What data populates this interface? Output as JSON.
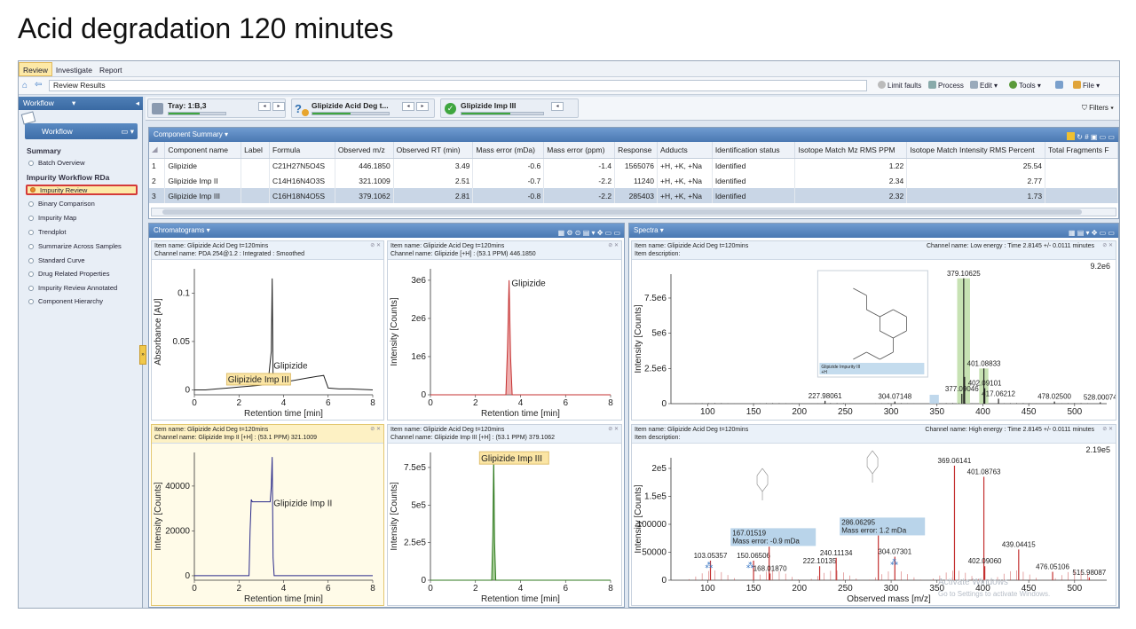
{
  "slide_title": "Acid degradation 120 minutes",
  "ribbon": {
    "tabs": [
      "Review",
      "Investigate",
      "Report"
    ]
  },
  "nav": {
    "address": "Review Results",
    "limit_faults": "Limit faults",
    "process": "Process",
    "edit": "Edit",
    "tools": "Tools",
    "file": "File",
    "filters": "Filters"
  },
  "sidebar": {
    "header": "Workflow",
    "workflow_button": "Workflow",
    "summary_label": "Summary",
    "batch_overview": "Batch Overview",
    "workflow_label": "Impurity Workflow RDa",
    "items": [
      "Impurity Review",
      "Binary Comparison",
      "Impurity Map",
      "Trendplot",
      "Summarize Across Samples",
      "Standard Curve",
      "Drug Related Properties",
      "Impurity Review Annotated",
      "Component Hierarchy"
    ]
  },
  "trays": [
    {
      "label": "Tray: 1:B,3",
      "progress": 0.55
    },
    {
      "label": "Glipizide Acid Deg t...",
      "progress": 0.5
    },
    {
      "label": "Glipizide Imp III",
      "progress": 0.6
    }
  ],
  "component_summary": {
    "title": "Component Summary",
    "columns": [
      "Component name",
      "Label",
      "Formula",
      "Observed m/z",
      "Observed RT (min)",
      "Mass error (mDa)",
      "Mass error (ppm)",
      "Response",
      "Adducts",
      "Identification status",
      "Isotope Match Mz RMS PPM",
      "Isotope Match Intensity RMS Percent",
      "Total Fragments F"
    ],
    "rows": [
      {
        "n": "1",
        "name": "Glipizide",
        "label": "",
        "formula": "C21H27N5O4S",
        "mz": "446.1850",
        "rt": "3.49",
        "me_mda": "-0.6",
        "me_ppm": "-1.4",
        "response": "1565076",
        "adducts": "+H, +K, +Na",
        "status": "Identified",
        "iso_ppm": "1.22",
        "iso_pct": "25.54"
      },
      {
        "n": "2",
        "name": "Glipizide Imp II",
        "label": "",
        "formula": "C14H16N4O3S",
        "mz": "321.1009",
        "rt": "2.51",
        "me_mda": "-0.7",
        "me_ppm": "-2.2",
        "response": "11240",
        "adducts": "+H, +K, +Na",
        "status": "Identified",
        "iso_ppm": "2.34",
        "iso_pct": "2.77"
      },
      {
        "n": "3",
        "name": "Glipizide Imp III",
        "label": "",
        "formula": "C16H18N4O5S",
        "mz": "379.1062",
        "rt": "2.81",
        "me_mda": "-0.8",
        "me_ppm": "-2.2",
        "response": "285403",
        "adducts": "+H, +K, +Na",
        "status": "Identified",
        "iso_ppm": "2.32",
        "iso_pct": "1.73"
      }
    ]
  },
  "chromatograms": {
    "title": "Chromatograms",
    "xlabel": "Retention time [min]",
    "plots": [
      {
        "item": "Item name: Glipizide Acid Deg t=120mins",
        "channel": "Channel name: PDA 254@1.2 : Integrated : Smoothed",
        "ylabel": "Absorbance [AU]",
        "label1": "Glipizide",
        "label2": "Glipizide Imp III"
      },
      {
        "item": "Item name: Glipizide Acid Deg t=120mins",
        "channel": "Channel name: Glipizide [+H] : (53.1 PPM) 446.1850",
        "ylabel": "Intensity [Counts]",
        "label1": "Glipizide"
      },
      {
        "item": "Item name: Glipizide Acid Deg t=120mins",
        "channel": "Channel name: Glipizide Imp II [+H] : (53.1 PPM) 321.1009",
        "ylabel": "Intensity [Counts]",
        "label1": "Glipizide Imp II"
      },
      {
        "item": "Item name: Glipizide Acid Deg t=120mins",
        "channel": "Channel name: Glipizide Imp III [+H] : (53.1 PPM) 379.1062",
        "ylabel": "Intensity [Counts]",
        "label1": "Glipizide Imp III"
      }
    ]
  },
  "spectra": {
    "title": "Spectra",
    "low": {
      "item": "Item name: Glipizide Acid Deg t=120mins",
      "desc": "Item description:",
      "channel": "Channel name: Low energy : Time 2.8145 +/- 0.0111 minutes",
      "max": "9.2e6",
      "ylabel": "Intensity [Counts]",
      "struct_label": "Glipizide Impurity III",
      "struct_sub": "+H"
    },
    "high": {
      "item": "Item name: Glipizide Acid Deg t=120mins",
      "desc": "Item description:",
      "channel": "Channel name: High energy : Time 2.8145 +/- 0.0111 minutes",
      "max": "2.19e5",
      "ylabel": "Intensity [Counts]",
      "xlabel": "Observed mass [m/z]",
      "ann1a": "167.01519",
      "ann1b": "Mass error: -0.9 mDa",
      "ann2a": "286.06295",
      "ann2b": "Mass error: 1.2 mDa"
    }
  },
  "watermark": {
    "line1": "Activate Windows",
    "line2": "Go to Settings to activate Windows."
  },
  "chart_data": [
    {
      "type": "line",
      "title": "",
      "xlabel": "Retention time [min]",
      "ylabel": "Absorbance [AU]",
      "xlim": [
        0,
        8
      ],
      "ylim": [
        -0.005,
        0.125
      ],
      "xticks": [
        0,
        2,
        4,
        6,
        8
      ],
      "yticks": [
        0,
        0.05,
        0.1
      ],
      "ytick_labels": [
        "0",
        "0.05",
        "0.1"
      ],
      "series": [
        {
          "x": [
            0,
            0.5,
            1,
            1.5,
            2,
            2.5,
            3,
            3.3,
            3.45,
            3.49,
            3.53,
            3.7,
            4,
            4.5,
            5,
            5.5,
            5.8,
            6,
            6.5,
            7,
            8
          ],
          "y": [
            0,
            0,
            0.001,
            0.002,
            0.003,
            0.004,
            0.005,
            0.006,
            0.04,
            0.115,
            0.01,
            0.007,
            0.008,
            0.01,
            0.012,
            0.014,
            0.015,
            0.002,
            0.001,
            0.001,
            0
          ]
        }
      ]
    },
    {
      "type": "line",
      "title": "",
      "xlabel": "Retention time [min]",
      "ylabel": "Intensity [Counts]",
      "xlim": [
        0,
        8
      ],
      "ylim": [
        0,
        3300000.0
      ],
      "xticks": [
        0,
        2,
        4,
        6,
        8
      ],
      "yticks": [
        0,
        1000000.0,
        2000000.0,
        3000000.0
      ],
      "ytick_labels": [
        "0",
        "1e6",
        "2e6",
        "3e6"
      ],
      "series": [
        {
          "x": [
            0,
            3.35,
            3.42,
            3.49,
            3.56,
            3.63,
            8
          ],
          "y": [
            0,
            0,
            1200000.0,
            3000000.0,
            1000000.0,
            0,
            0
          ]
        }
      ]
    },
    {
      "type": "line",
      "title": "",
      "xlabel": "Retention time [min]",
      "ylabel": "Intensity [Counts]",
      "xlim": [
        0,
        8
      ],
      "ylim": [
        -2000,
        55000
      ],
      "xticks": [
        0,
        2,
        4,
        6,
        8
      ],
      "yticks": [
        0,
        20000,
        40000
      ],
      "ytick_labels": [
        "0",
        "20000",
        "40000"
      ],
      "series": [
        {
          "x": [
            0,
            2.45,
            2.5,
            2.55,
            2.6,
            3.4,
            3.45,
            3.49,
            3.53,
            3.58,
            8
          ],
          "y": [
            0,
            0,
            20000,
            34000,
            33000,
            33000,
            40000,
            53000,
            8000,
            0,
            0
          ]
        }
      ]
    },
    {
      "type": "line",
      "title": "",
      "xlabel": "Retention time [min]",
      "ylabel": "Intensity [Counts]",
      "xlim": [
        0,
        8
      ],
      "ylim": [
        0,
        850000.0
      ],
      "xticks": [
        0,
        2,
        4,
        6,
        8
      ],
      "yticks": [
        0,
        250000.0,
        500000.0,
        750000.0
      ],
      "ytick_labels": [
        "0",
        "2.5e5",
        "5e5",
        "7.5e5"
      ],
      "series": [
        {
          "x": [
            0,
            2.72,
            2.77,
            2.81,
            2.85,
            2.9,
            8
          ],
          "y": [
            0,
            0,
            300000.0,
            840000.0,
            250000.0,
            0,
            0
          ]
        }
      ]
    },
    {
      "type": "bar",
      "title": "",
      "xlabel": "",
      "ylabel": "Intensity [Counts]",
      "xlim": [
        60,
        535
      ],
      "ylim": [
        0,
        9200000.0
      ],
      "xticks": [
        100,
        150,
        200,
        250,
        300,
        350,
        400,
        450,
        500
      ],
      "yticks": [
        0,
        2500000.0,
        5000000.0,
        7500000.0
      ],
      "ytick_labels": [
        "0",
        "2.5e6",
        "5e6",
        "7.5e6"
      ],
      "peaks": [
        {
          "mz": 227.98061,
          "y": 200000.0,
          "label": "227.98061"
        },
        {
          "mz": 304.07148,
          "y": 150000.0,
          "label": "304.07148"
        },
        {
          "mz": 377.09046,
          "y": 700000.0,
          "label": "377.09046"
        },
        {
          "mz": 379.10625,
          "y": 8900000.0,
          "label": "379.10625"
        },
        {
          "mz": 380.1,
          "y": 1900000.0,
          "label": ""
        },
        {
          "mz": 401.08833,
          "y": 2500000.0,
          "label": "401.08833"
        },
        {
          "mz": 402.09101,
          "y": 1100000.0,
          "label": "402.09101"
        },
        {
          "mz": 417.06212,
          "y": 350000.0,
          "label": "417.06212"
        },
        {
          "mz": 478.025,
          "y": 150000.0,
          "label": "478.02500"
        },
        {
          "mz": 528.00074,
          "y": 100000.0,
          "label": "528.00074"
        }
      ]
    },
    {
      "type": "bar",
      "title": "",
      "xlabel": "Observed mass [m/z]",
      "ylabel": "Intensity [Counts]",
      "xlim": [
        60,
        535
      ],
      "ylim": [
        0,
        219000.0
      ],
      "xticks": [
        100,
        150,
        200,
        250,
        300,
        350,
        400,
        450,
        500
      ],
      "yticks": [
        0,
        50000,
        100000,
        150000.0,
        200000.0
      ],
      "ytick_labels": [
        "0",
        "50000",
        "100000",
        "1.5e5",
        "2e5"
      ],
      "peaks": [
        {
          "mz": 103.05357,
          "y": 35000,
          "label": "103.05357"
        },
        {
          "mz": 150.06506,
          "y": 35000,
          "label": "150.06506"
        },
        {
          "mz": 167.01519,
          "y": 60000,
          "label": ""
        },
        {
          "mz": 168.0187,
          "y": 12000,
          "label": "168.01870"
        },
        {
          "mz": 222.10135,
          "y": 25000,
          "label": "222.10135"
        },
        {
          "mz": 240.11134,
          "y": 40000,
          "label": "240.11134"
        },
        {
          "mz": 286.06295,
          "y": 80000,
          "label": ""
        },
        {
          "mz": 304.07301,
          "y": 42000,
          "label": "304.07301"
        },
        {
          "mz": 369.06141,
          "y": 205000,
          "label": "369.06141"
        },
        {
          "mz": 401.08763,
          "y": 185000,
          "label": "401.08763"
        },
        {
          "mz": 402.0906,
          "y": 25000,
          "label": "402.09060"
        },
        {
          "mz": 439.04415,
          "y": 55000,
          "label": "439.04415"
        },
        {
          "mz": 476.05106,
          "y": 15000,
          "label": "476.05106"
        },
        {
          "mz": 515.98087,
          "y": 5000,
          "label": "515.98087"
        }
      ]
    }
  ]
}
